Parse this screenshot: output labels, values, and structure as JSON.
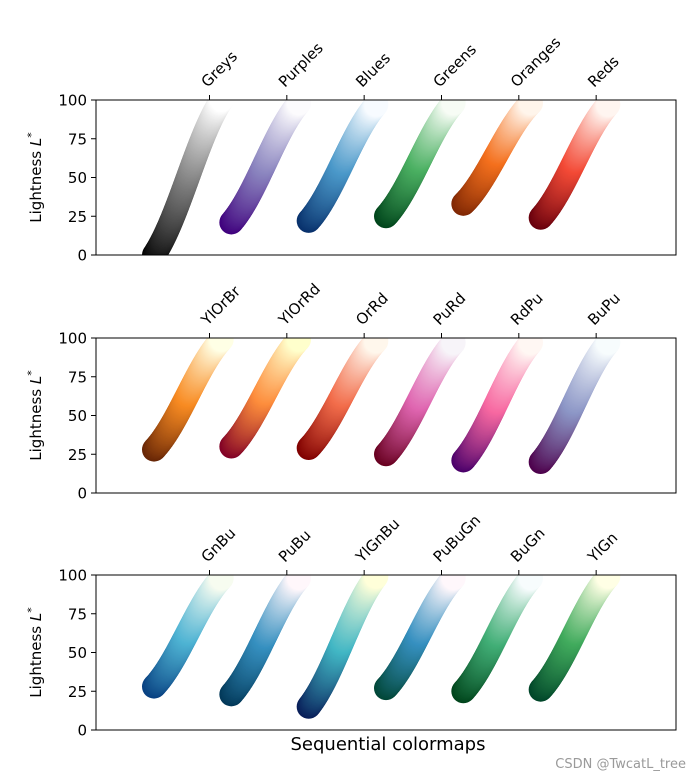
{
  "chart_data": [
    {
      "type": "scatter",
      "ylabel": "Lightness L*",
      "ylim": [
        0,
        100
      ],
      "yticks": [
        0,
        25,
        50,
        75,
        100
      ],
      "xlim": [
        -1,
        14
      ],
      "series": [
        {
          "name": "Greys",
          "x": 0.5,
          "l_start": 0,
          "l_end": 100,
          "c_start": "#000000",
          "c_mid": "#7a7a7a",
          "c_end": "#ffffff"
        },
        {
          "name": "Purples",
          "x": 2.5,
          "l_start": 21,
          "l_end": 98,
          "c_start": "#3f007d",
          "c_mid": "#8b85bf",
          "c_end": "#fcfbfd"
        },
        {
          "name": "Blues",
          "x": 4.5,
          "l_start": 22,
          "l_end": 97,
          "c_start": "#08306b",
          "c_mid": "#4a98c9",
          "c_end": "#f7fbff"
        },
        {
          "name": "Greens",
          "x": 6.5,
          "l_start": 25,
          "l_end": 98,
          "c_start": "#00441b",
          "c_mid": "#4bb062",
          "c_end": "#f7fcf5"
        },
        {
          "name": "Oranges",
          "x": 8.5,
          "l_start": 33,
          "l_end": 98,
          "c_start": "#7f2704",
          "c_mid": "#f4701d",
          "c_end": "#fff5eb"
        },
        {
          "name": "Reds",
          "x": 10.5,
          "l_start": 24,
          "l_end": 97,
          "c_start": "#67000d",
          "c_mid": "#f34a36",
          "c_end": "#fff5f0"
        }
      ]
    },
    {
      "type": "scatter",
      "ylabel": "Lightness L*",
      "ylim": [
        0,
        100
      ],
      "yticks": [
        0,
        25,
        50,
        75,
        100
      ],
      "xlim": [
        -1,
        14
      ],
      "series": [
        {
          "name": "YlOrBr",
          "x": 0.5,
          "l_start": 28,
          "l_end": 99,
          "c_start": "#662506",
          "c_mid": "#f88b22",
          "c_end": "#ffffe5"
        },
        {
          "name": "YlOrRd",
          "x": 2.5,
          "l_start": 30,
          "l_end": 99,
          "c_start": "#800026",
          "c_mid": "#fd8d3c",
          "c_end": "#ffffcc"
        },
        {
          "name": "OrRd",
          "x": 4.5,
          "l_start": 29,
          "l_end": 98,
          "c_start": "#7f0000",
          "c_mid": "#f26d4b",
          "c_end": "#fff7ec"
        },
        {
          "name": "PuRd",
          "x": 6.5,
          "l_start": 25,
          "l_end": 97,
          "c_start": "#67001f",
          "c_mid": "#df65b0",
          "c_end": "#f7f4f9"
        },
        {
          "name": "RdPu",
          "x": 8.5,
          "l_start": 21,
          "l_end": 97,
          "c_start": "#49006a",
          "c_mid": "#f768a1",
          "c_end": "#fff7f3"
        },
        {
          "name": "BuPu",
          "x": 10.5,
          "l_start": 20,
          "l_end": 97,
          "c_start": "#4d004b",
          "c_mid": "#8c96c6",
          "c_end": "#f7fcfd"
        }
      ]
    },
    {
      "type": "scatter",
      "ylabel": "Lightness L*",
      "xlabel": "Sequential colormaps",
      "ylim": [
        0,
        100
      ],
      "yticks": [
        0,
        25,
        50,
        75,
        100
      ],
      "xlim": [
        -1,
        14
      ],
      "series": [
        {
          "name": "GnBu",
          "x": 0.5,
          "l_start": 28,
          "l_end": 98,
          "c_start": "#084081",
          "c_mid": "#4eb3d3",
          "c_end": "#f7fcf0"
        },
        {
          "name": "PuBu",
          "x": 2.5,
          "l_start": 23,
          "l_end": 98,
          "c_start": "#023858",
          "c_mid": "#3690c0",
          "c_end": "#fff7fb"
        },
        {
          "name": "YlGnBu",
          "x": 4.5,
          "l_start": 15,
          "l_end": 99,
          "c_start": "#081d58",
          "c_mid": "#41b6c4",
          "c_end": "#ffffd9"
        },
        {
          "name": "PuBuGn",
          "x": 6.5,
          "l_start": 27,
          "l_end": 98,
          "c_start": "#014636",
          "c_mid": "#3690c0",
          "c_end": "#fff7fb"
        },
        {
          "name": "BuGn",
          "x": 8.5,
          "l_start": 25,
          "l_end": 98,
          "c_start": "#00441b",
          "c_mid": "#41ae76",
          "c_end": "#f7fcfd"
        },
        {
          "name": "YlGn",
          "x": 10.5,
          "l_start": 26,
          "l_end": 99,
          "c_start": "#004529",
          "c_mid": "#41ab5d",
          "c_end": "#ffffe5"
        }
      ]
    }
  ],
  "watermark": "CSDN @TwcatL_tree"
}
